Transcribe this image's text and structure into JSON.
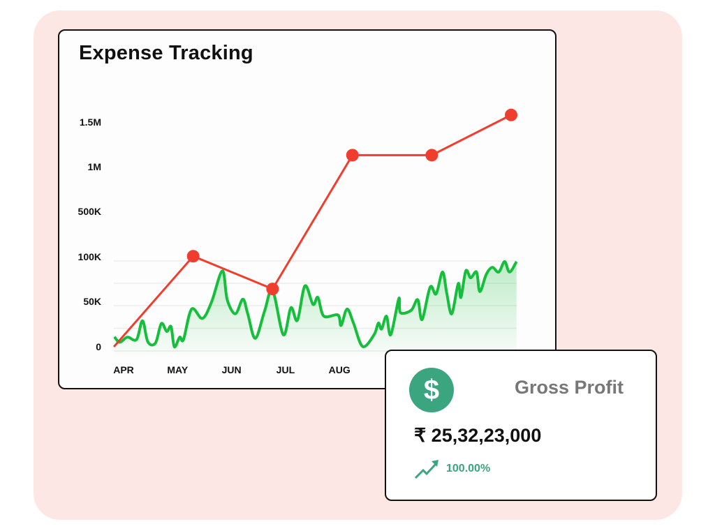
{
  "chart_data": {
    "type": "line",
    "title": "Expense Tracking",
    "xlabel": "",
    "ylabel": "",
    "x_tick_labels": [
      "APR",
      "MAY",
      "JUN",
      "JUL",
      "AUG"
    ],
    "y_tick_labels": [
      "0",
      "50K",
      "100K",
      "500K",
      "1M",
      "1.5M"
    ],
    "y_tick_values": [
      0,
      50000,
      100000,
      500000,
      1000000,
      1500000
    ],
    "y_scale": "piecewise (ticks evenly spaced)",
    "grid": true,
    "x_units": "months since APR",
    "series": [
      {
        "name": "expenses-markers",
        "color": "#ef3e2d",
        "style": "line-with-markers",
        "x": [
          -0.18,
          1.29,
          2.76,
          4.24,
          5.71,
          7.18
        ],
        "values": [
          0,
          105000,
          64000,
          1130000,
          1130000,
          1580000
        ]
      },
      {
        "name": "daily-trend",
        "color": "#16bf3b",
        "style": "smooth-area",
        "x": [
          -0.17,
          -0.07,
          0.07,
          0.24,
          0.35,
          0.45,
          0.59,
          0.7,
          0.8,
          0.88,
          0.94,
          1.04,
          1.11,
          1.26,
          1.46,
          1.63,
          1.83,
          1.92,
          2.07,
          2.21,
          2.3,
          2.44,
          2.61,
          2.76,
          2.96,
          3.1,
          3.22,
          3.36,
          3.51,
          3.6,
          3.71,
          3.97,
          4.03,
          4.14,
          4.26,
          4.43,
          4.64,
          4.72,
          4.78,
          4.87,
          4.95,
          5.1,
          5.13,
          5.33,
          5.45,
          5.53,
          5.68,
          5.79,
          5.91,
          5.99,
          6.08,
          6.2,
          6.25,
          6.34,
          6.43,
          6.54,
          6.6,
          6.72,
          6.83,
          6.95,
          7.06,
          7.15,
          7.28
        ],
        "values": [
          11000,
          5000,
          10600,
          8000,
          28700,
          5400,
          4100,
          25600,
          17000,
          22200,
          0,
          10600,
          8000,
          41600,
          31300,
          49400,
          84200,
          51900,
          36400,
          52500,
          36400,
          9300,
          39000,
          62300,
          13200,
          43000,
          29200,
          67400,
          46700,
          54500,
          33800,
          35100,
          23500,
          41600,
          26100,
          300,
          13200,
          26100,
          19600,
          33800,
          13200,
          53200,
          37700,
          40300,
          51900,
          30000,
          66100,
          58400,
          82900,
          58400,
          36400,
          70000,
          54500,
          84200,
          76500,
          82900,
          61000,
          80400,
          88100,
          82900,
          94600,
          82900,
          94600
        ]
      }
    ]
  },
  "profit_card": {
    "icon": "dollar-icon",
    "icon_glyph": "$",
    "label": "Gross Profit",
    "amount": "₹ 25,32,23,000",
    "trend_icon": "trending-up-icon",
    "change": "100.00%",
    "accent": "#3aa57f"
  },
  "colors": {
    "background": "#fde7e4",
    "accent_red": "#ef3e2d",
    "accent_green": "#16bf3b"
  }
}
